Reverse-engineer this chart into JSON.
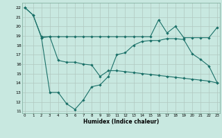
{
  "xlabel": "Humidex (Indice chaleur)",
  "background_color": "#c8e8e0",
  "grid_color": "#b0c8c0",
  "line_color": "#1a7068",
  "x_ticks": [
    0,
    1,
    2,
    3,
    4,
    5,
    6,
    7,
    8,
    9,
    10,
    11,
    12,
    13,
    14,
    15,
    16,
    17,
    18,
    19,
    20,
    21,
    22,
    23
  ],
  "y_ticks": [
    11,
    12,
    13,
    14,
    15,
    16,
    17,
    18,
    19,
    20,
    21,
    22
  ],
  "ylim": [
    10.8,
    22.5
  ],
  "xlim": [
    -0.3,
    23.3
  ],
  "series1_x": [
    0,
    1,
    2,
    3,
    4,
    5,
    6,
    7,
    8,
    9,
    10,
    11,
    12,
    13,
    14,
    15,
    16,
    17,
    18,
    19,
    20,
    21,
    22,
    23
  ],
  "series1_y": [
    22,
    21.2,
    18.8,
    13.0,
    13.0,
    11.8,
    11.2,
    12.2,
    13.6,
    13.8,
    14.7,
    17.0,
    17.2,
    18.0,
    18.4,
    18.5,
    18.5,
    18.7,
    18.7,
    18.6,
    17.1,
    16.5,
    15.8,
    14.0
  ],
  "series2_x": [
    0,
    1,
    2,
    3,
    4,
    5,
    6,
    7,
    8,
    9,
    10,
    11,
    12,
    13,
    14,
    15,
    16,
    17,
    18,
    19,
    20,
    21,
    22,
    23
  ],
  "series2_y": [
    22,
    21.2,
    18.9,
    18.9,
    16.4,
    16.2,
    16.2,
    16.0,
    15.9,
    14.7,
    15.3,
    15.3,
    15.2,
    15.1,
    15.0,
    14.9,
    14.8,
    14.7,
    14.6,
    14.5,
    14.4,
    14.3,
    14.2,
    14.0
  ],
  "series3_x": [
    2,
    3,
    4,
    5,
    6,
    7,
    8,
    9,
    10,
    11,
    12,
    13,
    14,
    15,
    16,
    17,
    18,
    19,
    20,
    21,
    22,
    23
  ],
  "series3_y": [
    18.8,
    18.9,
    18.9,
    18.9,
    18.9,
    18.9,
    18.9,
    18.9,
    18.9,
    18.9,
    18.9,
    18.9,
    18.9,
    18.9,
    20.7,
    19.3,
    20.0,
    18.8,
    18.8,
    18.8,
    18.8,
    19.9
  ]
}
